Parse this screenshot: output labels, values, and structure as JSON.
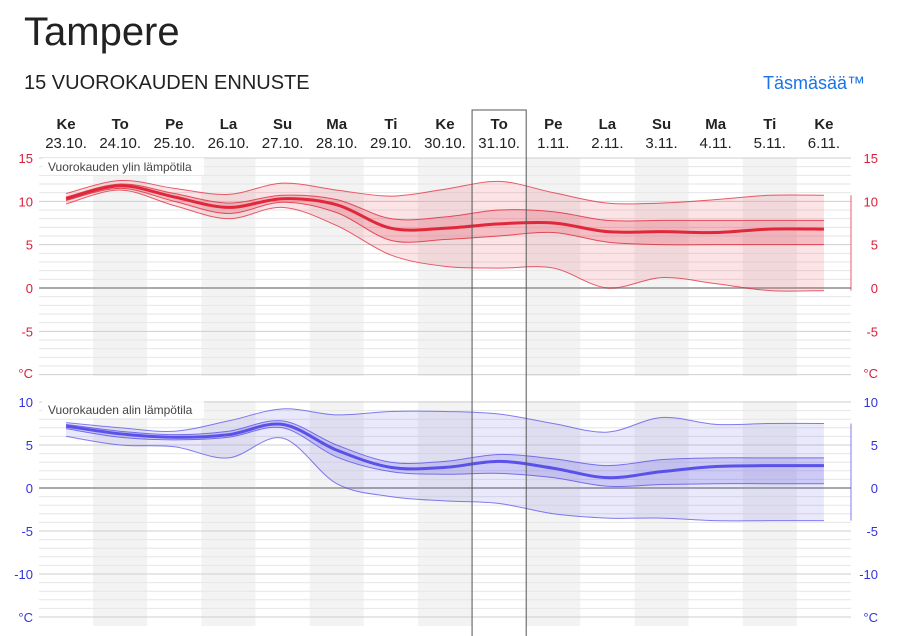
{
  "page": {
    "title": "Tampere",
    "subtitle": "15 VUOROKAUDEN ENNUSTE",
    "link_label": "Täsmäsää™"
  },
  "colors": {
    "max_line": "#e0283a",
    "max_band": "#e0283a",
    "min_line": "#5a52e8",
    "min_band": "#5a52e8",
    "max_axis": "#d8203a",
    "min_axis": "#3333dd",
    "weekend_stripe": "#f3f3f3"
  },
  "chart_data": [
    {
      "type": "area",
      "title": "Vuorokauden ylin lämpötila",
      "unit": "°C",
      "categories": [
        "Ke",
        "To",
        "Pe",
        "La",
        "Su",
        "Ma",
        "Ti",
        "Ke",
        "To",
        "Pe",
        "La",
        "Su",
        "Ma",
        "Ti",
        "Ke"
      ],
      "dates": [
        "23.10.",
        "24.10.",
        "25.10.",
        "26.10.",
        "27.10.",
        "28.10.",
        "29.10.",
        "30.10.",
        "31.10.",
        "1.11.",
        "2.11.",
        "3.11.",
        "4.11.",
        "5.11.",
        "6.11."
      ],
      "highlight_index": 8,
      "weekend_indices": [
        1,
        3,
        5,
        7,
        9,
        11,
        13
      ],
      "ylim": [
        -10,
        15
      ],
      "yticks": [
        15,
        10,
        5,
        0,
        -5
      ],
      "series": [
        {
          "name": "median",
          "values": [
            10.3,
            11.8,
            10.5,
            9.3,
            10.3,
            9.6,
            6.9,
            6.9,
            7.4,
            7.5,
            6.5,
            6.5,
            6.4,
            6.8,
            6.8
          ]
        },
        {
          "name": "p25",
          "values": [
            10.1,
            11.5,
            10.0,
            8.6,
            9.9,
            8.7,
            5.5,
            5.6,
            6.0,
            6.4,
            5.3,
            5.0,
            5.0,
            5.0,
            5.0
          ]
        },
        {
          "name": "p75",
          "values": [
            10.5,
            12.0,
            10.9,
            9.8,
            10.7,
            10.2,
            8.0,
            8.2,
            9.0,
            8.8,
            7.8,
            7.8,
            7.8,
            7.8,
            7.8
          ]
        },
        {
          "name": "min",
          "values": [
            9.7,
            11.3,
            9.5,
            8.0,
            9.3,
            7.2,
            3.8,
            2.5,
            2.3,
            2.3,
            0.0,
            1.2,
            0.5,
            -0.3,
            -0.3
          ]
        },
        {
          "name": "max",
          "values": [
            10.9,
            12.4,
            11.5,
            10.8,
            12.1,
            11.3,
            10.6,
            11.4,
            12.3,
            11.0,
            9.8,
            9.8,
            10.2,
            10.7,
            10.7
          ]
        }
      ]
    },
    {
      "type": "area",
      "title": "Vuorokauden alin lämpötila",
      "unit": "°C",
      "categories": [
        "Ke",
        "To",
        "Pe",
        "La",
        "Su",
        "Ma",
        "Ti",
        "Ke",
        "To",
        "Pe",
        "La",
        "Su",
        "Ma",
        "Ti",
        "Ke"
      ],
      "dates": [
        "23.10.",
        "24.10.",
        "25.10.",
        "26.10.",
        "27.10.",
        "28.10.",
        "29.10.",
        "30.10.",
        "31.10.",
        "1.11.",
        "2.11.",
        "3.11.",
        "4.11.",
        "5.11.",
        "6.11."
      ],
      "highlight_index": 8,
      "weekend_indices": [
        1,
        3,
        5,
        7,
        9,
        11,
        13
      ],
      "ylim": [
        -15,
        10
      ],
      "yticks": [
        10,
        5,
        0,
        -5,
        -10
      ],
      "series": [
        {
          "name": "median",
          "values": [
            7.2,
            6.3,
            5.9,
            6.2,
            7.4,
            4.4,
            2.4,
            2.4,
            3.1,
            2.3,
            1.2,
            1.9,
            2.5,
            2.6,
            2.6
          ]
        },
        {
          "name": "p25",
          "values": [
            6.9,
            5.9,
            5.6,
            5.9,
            7.0,
            3.6,
            1.9,
            1.6,
            1.7,
            1.2,
            0.2,
            0.4,
            0.5,
            0.5,
            0.5
          ]
        },
        {
          "name": "p75",
          "values": [
            7.4,
            6.6,
            6.2,
            6.6,
            7.8,
            5.0,
            3.0,
            3.1,
            3.9,
            3.4,
            2.6,
            3.3,
            3.5,
            3.5,
            3.5
          ]
        },
        {
          "name": "min",
          "values": [
            6.0,
            5.0,
            4.8,
            3.5,
            5.8,
            0.5,
            -1.0,
            -1.5,
            -1.8,
            -3.0,
            -3.5,
            -3.5,
            -3.8,
            -3.8,
            -3.8
          ]
        },
        {
          "name": "max",
          "values": [
            7.6,
            7.0,
            6.6,
            7.8,
            9.2,
            8.5,
            8.9,
            8.9,
            8.6,
            7.5,
            6.5,
            8.2,
            7.4,
            7.5,
            7.5
          ]
        }
      ]
    }
  ]
}
